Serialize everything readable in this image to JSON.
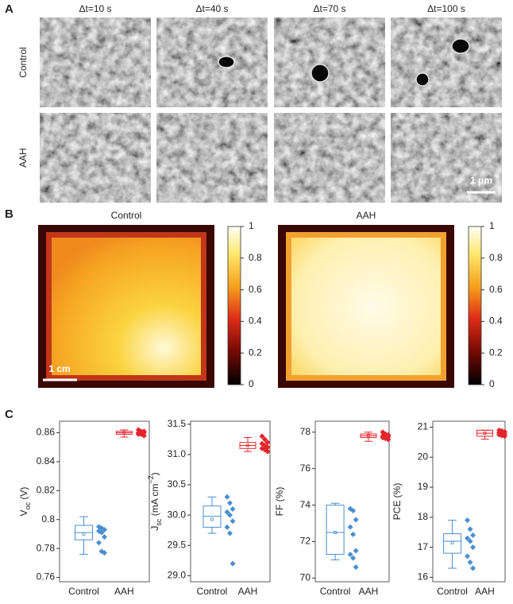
{
  "panels": {
    "A": {
      "label": "A",
      "columns": [
        "Δt=10 s",
        "Δt=40 s",
        "Δt=70 s",
        "Δt=100 s"
      ],
      "rows": [
        "Control",
        "AAH"
      ],
      "scale_bar": "1 μm"
    },
    "B": {
      "label": "B",
      "titles": [
        "Control",
        "AAH"
      ],
      "scale_bar": "1 cm",
      "colorbar": {
        "lim": [
          0,
          1
        ],
        "ticks": [
          0,
          0.2,
          0.4,
          0.6,
          0.8,
          1
        ]
      }
    },
    "C": {
      "label": "C"
    }
  },
  "chart_data": [
    {
      "type": "box",
      "ylabel": [
        {
          "text": "V"
        },
        {
          "text": "oc",
          "shift": "sub"
        },
        {
          "text": " (V)"
        }
      ],
      "categories": [
        "Control",
        "AAH"
      ],
      "ylim": [
        0.757,
        0.868
      ],
      "yticks": [
        0.76,
        0.78,
        0.8,
        0.82,
        0.84,
        0.86
      ],
      "series": [
        {
          "color": "#4a8fcf",
          "box": {
            "whisker_low": 0.776,
            "q1": 0.786,
            "median": 0.791,
            "q3": 0.796,
            "whisker_high": 0.802,
            "mean": 0.79
          },
          "points": [
            0.795,
            0.794,
            0.793,
            0.792,
            0.791,
            0.788,
            0.784,
            0.778,
            0.777
          ]
        },
        {
          "color": "#e3242b",
          "box": {
            "whisker_low": 0.857,
            "q1": 0.859,
            "median": 0.86,
            "q3": 0.861,
            "whisker_high": 0.862,
            "mean": 0.86
          },
          "points": [
            0.862,
            0.861,
            0.861,
            0.86,
            0.86,
            0.86,
            0.859,
            0.859,
            0.858
          ]
        }
      ]
    },
    {
      "type": "box",
      "ylabel": [
        {
          "text": "J"
        },
        {
          "text": "sc",
          "shift": "sub"
        },
        {
          "text": " (mA cm"
        },
        {
          "text": "−2",
          "shift": "super"
        },
        {
          "text": ")"
        }
      ],
      "categories": [
        "Control",
        "AAH"
      ],
      "ylim": [
        28.9,
        31.55
      ],
      "yticks": [
        {
          "value": 29,
          "label": "29.0"
        },
        29.5,
        {
          "value": 30,
          "label": "30.0"
        },
        30.5,
        {
          "value": 31,
          "label": "31.0"
        },
        31.5
      ],
      "series": [
        {
          "color": "#4a8fcf",
          "box": {
            "whisker_low": 29.7,
            "q1": 29.8,
            "median": 29.98,
            "q3": 30.15,
            "whisker_high": 30.3,
            "mean": 29.93
          },
          "points": [
            30.3,
            30.2,
            30.1,
            30.05,
            30.0,
            29.9,
            29.8,
            29.7,
            29.2
          ]
        },
        {
          "color": "#e3242b",
          "box": {
            "whisker_low": 31.05,
            "q1": 31.1,
            "median": 31.15,
            "q3": 31.2,
            "whisker_high": 31.28,
            "mean": 31.15
          },
          "points": [
            31.3,
            31.25,
            31.2,
            31.18,
            31.15,
            31.12,
            31.1,
            31.08,
            31.05
          ]
        }
      ]
    },
    {
      "type": "box",
      "ylabel": [
        {
          "text": "FF (%)"
        }
      ],
      "categories": [
        "Control",
        "AAH"
      ],
      "ylim": [
        69.8,
        78.6
      ],
      "yticks": [
        70,
        72,
        74,
        76,
        78
      ],
      "series": [
        {
          "color": "#4a8fcf",
          "box": {
            "whisker_low": 71.0,
            "q1": 71.3,
            "median": 72.5,
            "q3": 74.0,
            "whisker_high": 74.1,
            "mean": 72.5
          },
          "points": [
            73.8,
            73.7,
            73.2,
            72.8,
            72.4,
            71.5,
            71.3,
            71.1,
            70.6
          ]
        },
        {
          "color": "#e3242b",
          "box": {
            "whisker_low": 77.5,
            "q1": 77.7,
            "median": 77.8,
            "q3": 77.9,
            "whisker_high": 78.0,
            "mean": 77.8
          },
          "points": [
            78.0,
            77.9,
            77.85,
            77.8,
            77.8,
            77.75,
            77.7,
            77.65,
            77.6
          ]
        }
      ]
    },
    {
      "type": "box",
      "ylabel": [
        {
          "text": "PCE (%)"
        }
      ],
      "categories": [
        "Control",
        "AAH"
      ],
      "ylim": [
        15.85,
        21.2
      ],
      "yticks": [
        16,
        17,
        18,
        19,
        20,
        21
      ],
      "series": [
        {
          "color": "#4a8fcf",
          "box": {
            "whisker_low": 16.3,
            "q1": 16.8,
            "median": 17.2,
            "q3": 17.45,
            "whisker_high": 17.9,
            "mean": 17.15
          },
          "points": [
            17.9,
            17.6,
            17.4,
            17.3,
            17.2,
            17.0,
            16.7,
            16.5,
            16.3
          ]
        },
        {
          "color": "#e3242b",
          "box": {
            "whisker_low": 20.6,
            "q1": 20.7,
            "median": 20.8,
            "q3": 20.9,
            "whisker_high": 20.9,
            "mean": 20.8
          },
          "points": [
            20.9,
            20.88,
            20.85,
            20.82,
            20.8,
            20.78,
            20.75,
            20.72,
            20.7
          ]
        }
      ]
    }
  ]
}
